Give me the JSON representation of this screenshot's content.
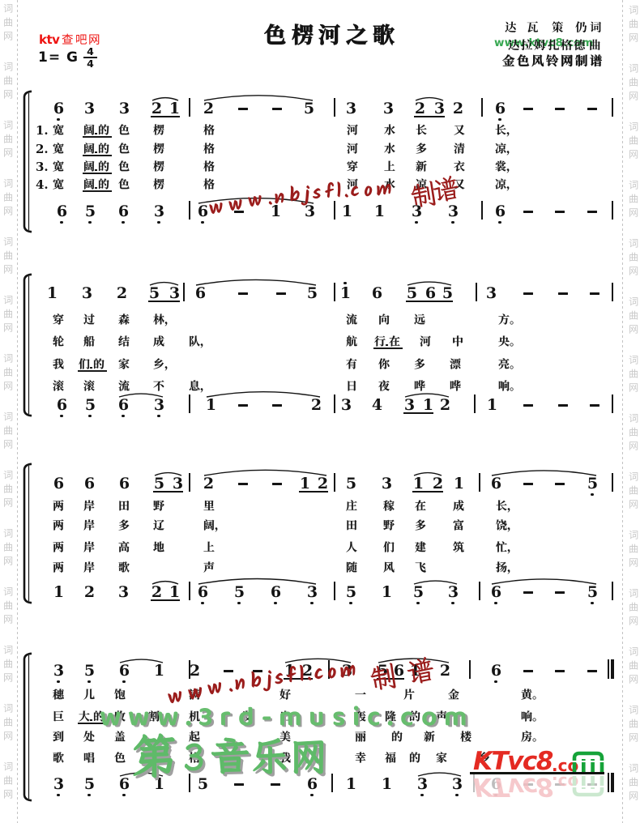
{
  "page": {
    "site_watermark_topleft": "ktv查吧网",
    "key_signature": {
      "tonic": "1= G",
      "meter_numerator": "4",
      "meter_denominator": "4"
    },
    "title": "色楞河之歌",
    "credits": [
      "达瓦策仍词",
      "达拉姆扎格德曲",
      "金色风铃网制谱"
    ],
    "credit_watermark": "www.ktvc8.com"
  },
  "side_watermark_text": "词曲网",
  "watermarks": {
    "red_script_text": "www.nbjsfl.com",
    "red_script_suffix": "制谱",
    "green_site": "www.3rd-music.com",
    "green_site_cn": "第3音乐网",
    "logo_main": "KTvc8",
    "logo_dot_co": ".co",
    "logo_m": "M"
  },
  "colors": {
    "ink": "#141414",
    "lyric_ink": "#171717",
    "ktv_red": "#ee1412",
    "red_script": "#9b1d1c",
    "green_site": "#67bd6e",
    "green_site_shadow": "#9d9d9d",
    "green_cn": "#5fba69",
    "green_cn_shadow": "#a0a0a0",
    "credit_watermark_green": "#2ea449",
    "logo_red": "#e42a22",
    "logo_green": "#16a339",
    "logo_reflection_red": "#f5bcc0",
    "logo_reflection_green": "#bfe3c4",
    "side_watermark_gray": "#c9c9c9",
    "paper": "#ffffff"
  },
  "systems": [
    {
      "top": {
        "notes": "6, 3 3 2 1 | 2 - - 5 | 3 3 2 3 2 | 6, - - - |",
        "beams": [
          [
            3,
            4
          ],
          [
            13,
            14
          ]
        ],
        "arcs": [
          [
            3,
            4
          ],
          [
            6,
            9
          ],
          [
            13,
            14
          ]
        ]
      },
      "lyrics": [
        {
          "num": "1.",
          "cells": [
            "宽",
            "阔.的",
            "色",
            "楞",
            "格",
            "河",
            "水",
            "长",
            "又",
            "长，"
          ],
          "mel": [
            1
          ]
        },
        {
          "num": "2.",
          "cells": [
            "宽",
            "阔.的",
            "色",
            "楞",
            "格",
            "河",
            "水",
            "多",
            "清",
            "凉，"
          ],
          "mel": [
            1
          ]
        },
        {
          "num": "3.",
          "cells": [
            "宽",
            "阔.的",
            "色",
            "楞",
            "格",
            "穿",
            "上",
            "新",
            "衣",
            "裳，"
          ],
          "mel": [
            1
          ]
        },
        {
          "num": "4.",
          "cells": [
            "宽",
            "阔.的",
            "色",
            "楞",
            "格",
            "河",
            "水",
            "凉",
            "又",
            "凉，"
          ],
          "mel": [
            1
          ]
        }
      ],
      "bottom": {
        "notes": "6, 5, 6, 3, | 6, - 1 3 | 1 1 3, 3, | 6, - - - |",
        "beams": [],
        "arcs": [
          [
            5,
            8
          ]
        ]
      }
    },
    {
      "top": {
        "notes": "1 3 2 5 3 | 6 - - 5 | 1' 6 5 6 5 | 3 - - - |",
        "beams": [
          [
            3,
            4
          ],
          [
            13,
            15
          ]
        ],
        "arcs": [
          [
            3,
            4
          ],
          [
            6,
            9
          ],
          [
            13,
            15
          ]
        ]
      },
      "lyrics": [
        {
          "num": "",
          "cells": [
            "穿",
            "过",
            "森",
            "林，",
            "流",
            "向",
            "远",
            "方。"
          ],
          "mel": []
        },
        {
          "num": "",
          "cells": [
            "轮",
            "船",
            "结",
            "成",
            "队，",
            "航",
            "行.在",
            "河",
            "中",
            "央。"
          ],
          "mel": [
            6
          ]
        },
        {
          "num": "",
          "cells": [
            "我",
            "们.的",
            "家",
            "乡，",
            "有",
            "你",
            "多",
            "漂",
            "亮。"
          ],
          "mel": [
            1
          ]
        },
        {
          "num": "",
          "cells": [
            "滚",
            "滚",
            "流",
            "不",
            "息，",
            "日",
            "夜",
            "哗",
            "哗",
            "响。"
          ],
          "mel": []
        }
      ],
      "bottom": {
        "notes": "6, 5, 6, 3, | 1 - - 2 | 3 4 3 1 2 | 1 - - - |",
        "beams": [
          [
            12,
            13
          ]
        ],
        "arcs": [
          [
            2,
            3
          ],
          [
            5,
            8
          ],
          [
            12,
            14
          ]
        ]
      }
    },
    {
      "top": {
        "notes": "6 6 6 5 3 | 2 - - 1 2 | 5 3 1 2 1 | 6 - - 5, |",
        "beams": [
          [
            3,
            4
          ],
          [
            9,
            10
          ],
          [
            14,
            15
          ]
        ],
        "arcs": [
          [
            3,
            4
          ],
          [
            6,
            10
          ],
          [
            14,
            15
          ],
          [
            18,
            21
          ]
        ]
      },
      "lyrics": [
        {
          "num": "",
          "cells": [
            "两",
            "岸",
            "田",
            "野",
            "里",
            "庄",
            "稼",
            "在",
            "成",
            "长，"
          ],
          "mel": []
        },
        {
          "num": "",
          "cells": [
            "两",
            "岸",
            "多",
            "辽",
            "阔，",
            "田",
            "野",
            "多",
            "富",
            "饶，"
          ],
          "mel": []
        },
        {
          "num": "",
          "cells": [
            "两",
            "岸",
            "高",
            "地",
            "上",
            "人",
            "们",
            "建",
            "筑",
            "忙，"
          ],
          "mel": []
        },
        {
          "num": "",
          "cells": [
            "两",
            "岸",
            "歌",
            "声",
            "随",
            "风",
            "飞",
            "扬，"
          ],
          "mel": []
        }
      ],
      "bottom": {
        "notes": "1 2 3 2 1 | 6, 5, 6, 3, | 5, 1 5, 3, | 6, - - 5, |",
        "beams": [
          [
            3,
            4
          ]
        ],
        "arcs": [
          [
            3,
            4
          ],
          [
            6,
            9
          ],
          [
            13,
            14
          ],
          [
            16,
            19
          ]
        ]
      }
    },
    {
      "top": {
        "notes": "3, 5, 6, 1 | 2 - - 1 2 | 3 5 6 1 2 | 6, - - - ||",
        "beams": [
          [
            8,
            9
          ],
          [
            12,
            13
          ]
        ],
        "arcs": [
          [
            2,
            3
          ],
          [
            8,
            11
          ],
          [
            12,
            15
          ]
        ]
      },
      "lyrics": [
        {
          "num": "",
          "cells": [
            "穗",
            "儿",
            "饱",
            "满",
            "好",
            "一",
            "片",
            "金",
            "黄。"
          ],
          "mel": []
        },
        {
          "num": "",
          "cells": [
            "巨",
            "大.的",
            "收",
            "割",
            "机",
            "发",
            "出",
            "轰",
            "隆",
            "的",
            "声",
            "响。"
          ],
          "mel": [
            1
          ]
        },
        {
          "num": "",
          "cells": [
            "到",
            "处",
            "盖",
            "起",
            "美",
            "丽",
            "的",
            "新",
            "楼",
            "房。"
          ],
          "mel": []
        },
        {
          "num": "",
          "cells": [
            "歌",
            "唱",
            "色",
            "楞",
            "格",
            "我",
            "幸",
            "福",
            "的",
            "家",
            "乡"
          ],
          "mel": []
        }
      ],
      "bottom": {
        "notes": "3, 5, 6, 1 | 5 - - 6, | 1 1 3, 3, | 6, - - - ||",
        "beams": [],
        "arcs": [
          [
            2,
            3
          ],
          [
            12,
            13
          ]
        ]
      }
    }
  ]
}
